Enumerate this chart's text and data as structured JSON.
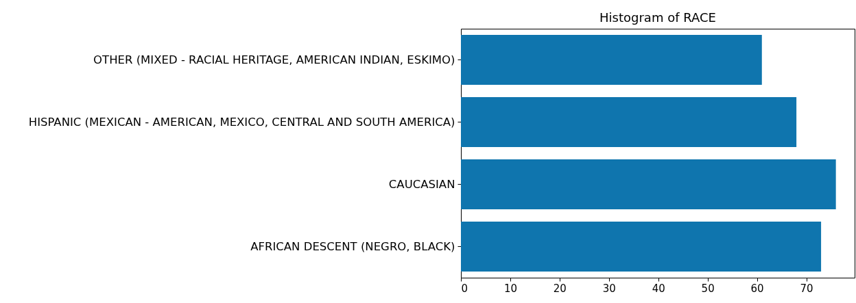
{
  "chart_data": {
    "type": "bar",
    "orientation": "horizontal",
    "title": "Histogram of RACE",
    "categories": [
      "OTHER (MIXED - RACIAL HERITAGE, AMERICAN INDIAN, ESKIMO)",
      "HISPANIC (MEXICAN - AMERICAN, MEXICO, CENTRAL AND SOUTH AMERICA)",
      "CAUCASIAN",
      "AFRICAN DESCENT (NEGRO, BLACK)"
    ],
    "values": [
      61,
      68,
      76,
      73
    ],
    "color": "#0f75ae",
    "xlim": [
      0,
      79.8
    ],
    "xticks": [
      0,
      10,
      20,
      30,
      40,
      50,
      60,
      70
    ],
    "grid": false
  }
}
